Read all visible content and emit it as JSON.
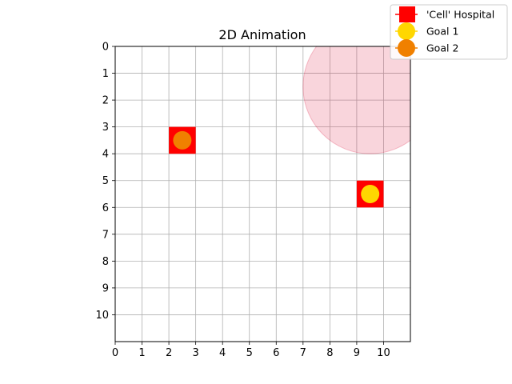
{
  "chart_data": {
    "type": "scatter",
    "title": "2D Animation",
    "xlabel": "",
    "ylabel": "",
    "xlim": [
      0,
      11
    ],
    "ylim": [
      0,
      11
    ],
    "y_inverted": true,
    "x_ticks": [
      0,
      1,
      2,
      3,
      4,
      5,
      6,
      7,
      8,
      9,
      10
    ],
    "y_ticks": [
      0,
      1,
      2,
      3,
      4,
      5,
      6,
      7,
      8,
      9,
      10
    ],
    "grid": true,
    "legend_position": "top-right",
    "series": [
      {
        "name": "'Cell' Hospital",
        "marker": "square",
        "color": "#ff0000",
        "points": [
          {
            "x": 2.5,
            "y": 3.5
          },
          {
            "x": 9.5,
            "y": 5.5
          }
        ]
      },
      {
        "name": "Goal 1",
        "marker": "circle",
        "color": "#ffd700",
        "points": [
          {
            "x": 9.5,
            "y": 5.5
          }
        ]
      },
      {
        "name": "Goal 2",
        "marker": "circle",
        "color": "#f08000",
        "points": [
          {
            "x": 2.5,
            "y": 3.5
          }
        ]
      }
    ],
    "regions": [
      {
        "shape": "circle",
        "cx": 9.5,
        "cy": 1.5,
        "r": 2.5,
        "color": "#dc143c",
        "opacity": 0.18
      }
    ]
  }
}
